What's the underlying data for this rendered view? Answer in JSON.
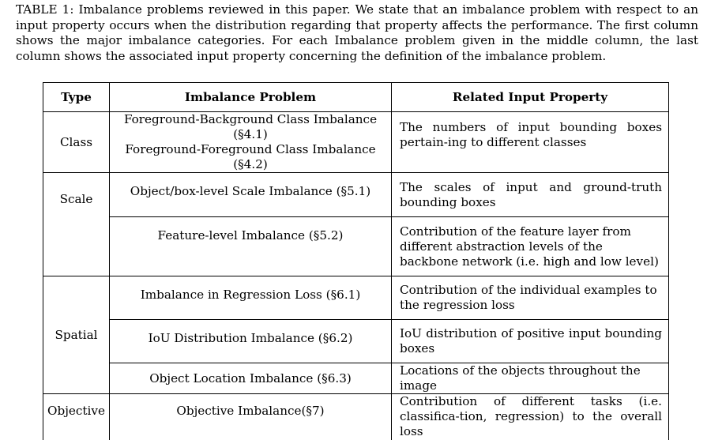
{
  "caption": "TABLE 1: Imbalance problems reviewed in this paper. We state that an imbalance problem with respect to an input property occurs when the distribution regarding that property affects the performance. The first column shows the major imbalance categories. For each Imbalance problem given in the middle column, the last column shows the associated input property concerning the definition of the imbalance problem.",
  "headers": {
    "type": "Type",
    "problem": "Imbalance Problem",
    "property": "Related Input Property"
  },
  "types": {
    "class": "Class",
    "scale": "Scale",
    "spatial": "Spatial",
    "objective": "Objective"
  },
  "rows": [
    {
      "problem": "Foreground-Background Class Imbalance (§4.1)",
      "property": "The numbers of input bounding boxes pertain-ing to different classes"
    },
    {
      "problem": "Foreground-Foreground Class Imbalance (§4.2)",
      "property": ""
    },
    {
      "problem": "Object/box-level Scale Imbalance (§5.1)",
      "property": "The scales of input and ground-truth bounding boxes"
    },
    {
      "problem": "Feature-level Imbalance (§5.2)",
      "property": "Contribution of the feature layer from different abstraction levels of the backbone network (i.e. high and low level)"
    },
    {
      "problem": "Imbalance in Regression Loss (§6.1)",
      "property": "Contribution of the individual examples to the regression loss"
    },
    {
      "problem": "IoU Distribution Imbalance (§6.2)",
      "property": "IoU distribution of positive input bounding boxes"
    },
    {
      "problem": "Object Location Imbalance (§6.3)",
      "property": "Locations of the objects throughout the image"
    },
    {
      "problem": "Objective Imbalance(§7)",
      "property": "Contribution of different tasks (i.e. classifica-tion, regression) to the overall loss"
    }
  ]
}
